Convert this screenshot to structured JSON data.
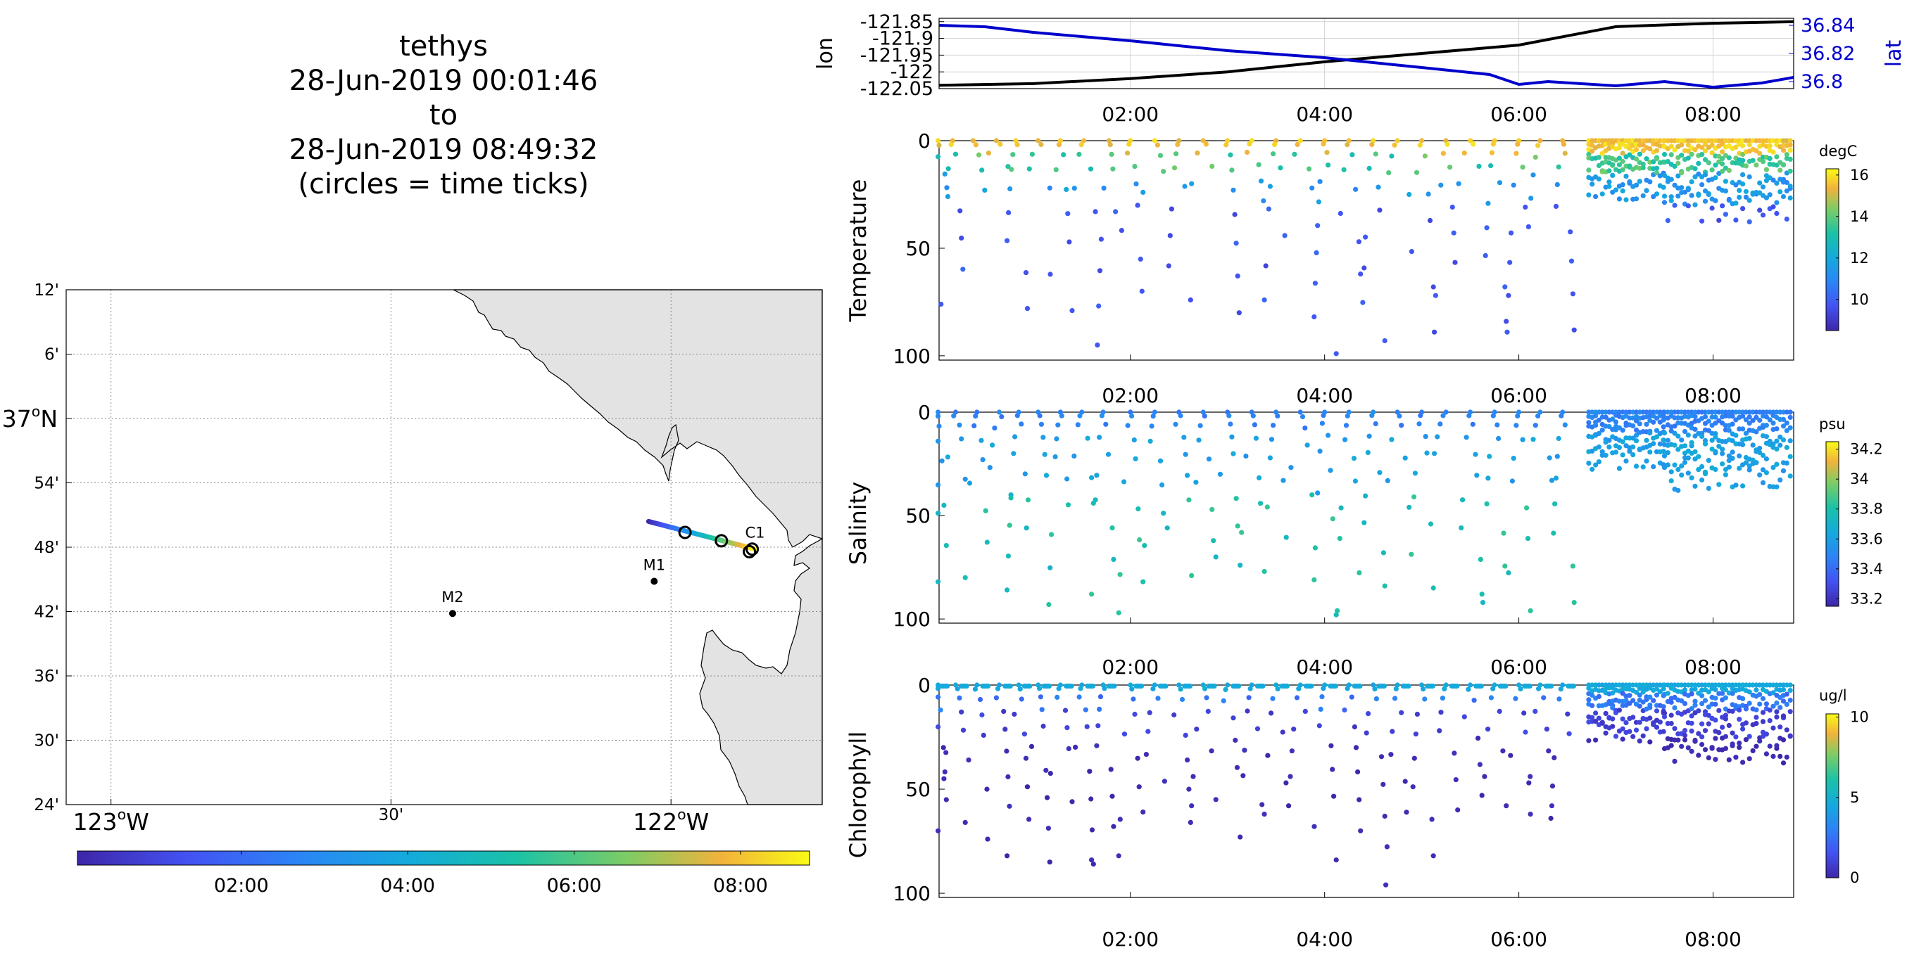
{
  "title": {
    "vehicle": "tethys",
    "start": "28-Jun-2019 00:01:46",
    "to": "to",
    "end": "28-Jun-2019 08:49:32",
    "note": "(circles = time ticks)"
  },
  "colors": {
    "lon_line": "#000000",
    "lat_line": "#0000cc",
    "land": "#e3e3e3",
    "track_start": "#3b3fd6",
    "track_end": "#f5d21f"
  },
  "chart_data": [
    {
      "type": "map",
      "name": "track-map",
      "lon_range": [
        -123.08,
        -121.73
      ],
      "lat_range": [
        36.4,
        37.2
      ],
      "lon_ticks": [
        {
          "value": -123.0,
          "label": "123",
          "sup": "o",
          "suffix": "W",
          "major": true
        },
        {
          "value": -122.5,
          "label": "30'",
          "major": false
        },
        {
          "value": -122.0,
          "label": "122",
          "sup": "o",
          "suffix": "W",
          "major": true
        }
      ],
      "lat_ticks": [
        {
          "value": 37.2,
          "label": "12'"
        },
        {
          "value": 37.1,
          "label": "6'"
        },
        {
          "value": 37.0,
          "label": "37",
          "sup": "o",
          "suffix": "N",
          "major": true
        },
        {
          "value": 36.9,
          "label": "54'"
        },
        {
          "value": 36.8,
          "label": "48'"
        },
        {
          "value": 36.7,
          "label": "42'"
        },
        {
          "value": 36.6,
          "label": "36'"
        },
        {
          "value": 36.5,
          "label": "30'"
        },
        {
          "value": 36.4,
          "label": "24'"
        }
      ],
      "moorings": [
        {
          "name": "M1",
          "lon": -122.03,
          "lat": 36.747
        },
        {
          "name": "M2",
          "lon": -122.39,
          "lat": 36.697
        },
        {
          "name": "C1",
          "lon": -121.85,
          "lat": 36.797
        }
      ],
      "track": {
        "start": {
          "lon": -122.04,
          "lat": 36.84
        },
        "end": {
          "lon": -121.85,
          "lat": 36.797
        },
        "time_ticks": [
          {
            "lon": -121.975,
            "lat": 36.823
          },
          {
            "lon": -121.91,
            "lat": 36.81
          },
          {
            "lon": -121.855,
            "lat": 36.797
          },
          {
            "lon": -121.86,
            "lat": 36.793
          }
        ]
      },
      "colorbar": {
        "range_hours": [
          0.03,
          8.83
        ],
        "ticks": [
          {
            "value": 2,
            "label": "02:00"
          },
          {
            "value": 4,
            "label": "04:00"
          },
          {
            "value": 6,
            "label": "06:00"
          },
          {
            "value": 8,
            "label": "08:00"
          }
        ]
      }
    },
    {
      "type": "line",
      "name": "navigation",
      "x_range_hours": [
        0.03,
        8.83
      ],
      "left_axis": {
        "label": "lon",
        "ylim": [
          -122.05,
          -121.84
        ],
        "ticks": [
          -121.85,
          -121.9,
          -121.95,
          -122,
          -122.05
        ],
        "tick_labels": [
          "-121.85",
          "-121.9",
          "-121.95",
          "-122",
          "-122.05"
        ]
      },
      "right_axis": {
        "label": "lat",
        "ylim": [
          36.795,
          36.845
        ],
        "ticks": [
          36.84,
          36.82,
          36.8
        ],
        "tick_labels": [
          "36.84",
          "36.82",
          "36.8"
        ]
      },
      "series": [
        {
          "axis": "left",
          "x": [
            0.03,
            1,
            2,
            3,
            4,
            5,
            6,
            7,
            8,
            8.83
          ],
          "y": [
            -122.04,
            -122.035,
            -122.02,
            -122.0,
            -121.97,
            -121.945,
            -121.92,
            -121.865,
            -121.855,
            -121.85
          ]
        },
        {
          "axis": "right",
          "x": [
            0.03,
            0.5,
            1,
            1.5,
            2,
            3,
            4,
            5,
            5.7,
            6,
            6.3,
            7,
            7.5,
            8,
            8.5,
            8.83
          ],
          "y": [
            36.84,
            36.839,
            36.835,
            36.832,
            36.829,
            36.822,
            36.817,
            36.81,
            36.805,
            36.798,
            36.8,
            36.797,
            36.8,
            36.796,
            36.799,
            36.803
          ]
        }
      ],
      "x_ticks": [
        {
          "value": 2,
          "label": "02:00"
        },
        {
          "value": 4,
          "label": "04:00"
        },
        {
          "value": 6,
          "label": "06:00"
        },
        {
          "value": 8,
          "label": "08:00"
        }
      ]
    },
    {
      "type": "scatter",
      "name": "temperature",
      "ylabel": "Temperature",
      "depth_ticks": [
        0,
        50,
        100
      ],
      "units": "degC",
      "cbar_range": [
        8.5,
        16.3
      ],
      "cbar_ticks": [
        10,
        12,
        14,
        16
      ],
      "x_ticks": [
        {
          "value": 2,
          "label": "02:00"
        },
        {
          "value": 4,
          "label": "04:00"
        },
        {
          "value": 6,
          "label": "06:00"
        },
        {
          "value": 8,
          "label": "08:00"
        }
      ],
      "profiles": [
        {
          "t": 0.0,
          "maxd": 26
        },
        {
          "t": 0.17,
          "maxd": 76
        },
        {
          "t": 0.38,
          "maxd": 23
        },
        {
          "t": 0.62,
          "maxd": 12
        },
        {
          "t": 0.82,
          "maxd": 78
        },
        {
          "t": 1.05,
          "maxd": 22
        },
        {
          "t": 1.28,
          "maxd": 79
        },
        {
          "t": 1.52,
          "maxd": 33
        },
        {
          "t": 1.78,
          "maxd": 95
        },
        {
          "t": 2.0,
          "maxd": 70
        },
        {
          "t": 2.25,
          "maxd": 24
        },
        {
          "t": 2.5,
          "maxd": 74
        },
        {
          "t": 2.75,
          "maxd": 20
        },
        {
          "t": 3.0,
          "maxd": 80
        },
        {
          "t": 3.25,
          "maxd": 28
        },
        {
          "t": 3.5,
          "maxd": 74
        },
        {
          "t": 3.75,
          "maxd": 22
        },
        {
          "t": 4.0,
          "maxd": 99
        },
        {
          "t": 4.25,
          "maxd": 62
        },
        {
          "t": 4.5,
          "maxd": 93
        },
        {
          "t": 4.75,
          "maxd": 25
        },
        {
          "t": 5.0,
          "maxd": 68
        },
        {
          "t": 5.25,
          "maxd": 89
        },
        {
          "t": 5.5,
          "maxd": 20
        },
        {
          "t": 5.75,
          "maxd": 84
        },
        {
          "t": 6.0,
          "maxd": 89
        },
        {
          "t": 6.22,
          "maxd": 40
        },
        {
          "t": 6.45,
          "maxd": 88
        }
      ],
      "dense_segments": [
        [
          6.72,
          7.5,
          28
        ],
        [
          7.5,
          8.8,
          38
        ]
      ]
    },
    {
      "type": "scatter",
      "name": "salinity",
      "ylabel": "Salinity",
      "depth_ticks": [
        0,
        50,
        100
      ],
      "units": "psu",
      "cbar_range": [
        33.15,
        34.25
      ],
      "cbar_ticks": [
        33.2,
        33.4,
        33.6,
        33.8,
        34,
        34.2
      ],
      "x_ticks": [
        {
          "value": 2,
          "label": "02:00"
        },
        {
          "value": 4,
          "label": "04:00"
        },
        {
          "value": 6,
          "label": "06:00"
        },
        {
          "value": 8,
          "label": "08:00"
        }
      ],
      "profiles": [
        {
          "t": 0.0,
          "maxd": 82
        },
        {
          "t": 0.2,
          "maxd": 45
        },
        {
          "t": 0.42,
          "maxd": 80
        },
        {
          "t": 0.65,
          "maxd": 40
        },
        {
          "t": 0.85,
          "maxd": 86
        },
        {
          "t": 1.05,
          "maxd": 56
        },
        {
          "t": 1.28,
          "maxd": 93
        },
        {
          "t": 1.5,
          "maxd": 44
        },
        {
          "t": 1.72,
          "maxd": 88
        },
        {
          "t": 2.0,
          "maxd": 97
        },
        {
          "t": 2.25,
          "maxd": 82
        },
        {
          "t": 2.5,
          "maxd": 56
        },
        {
          "t": 2.75,
          "maxd": 79
        },
        {
          "t": 3.0,
          "maxd": 70
        },
        {
          "t": 3.25,
          "maxd": 74
        },
        {
          "t": 3.5,
          "maxd": 77
        },
        {
          "t": 3.75,
          "maxd": 40
        },
        {
          "t": 4.0,
          "maxd": 98
        },
        {
          "t": 4.25,
          "maxd": 96
        },
        {
          "t": 4.5,
          "maxd": 84
        },
        {
          "t": 4.75,
          "maxd": 46
        },
        {
          "t": 5.0,
          "maxd": 85
        },
        {
          "t": 5.25,
          "maxd": 20
        },
        {
          "t": 5.5,
          "maxd": 88
        },
        {
          "t": 5.75,
          "maxd": 92
        },
        {
          "t": 6.0,
          "maxd": 96
        },
        {
          "t": 6.22,
          "maxd": 33
        },
        {
          "t": 6.45,
          "maxd": 92
        }
      ],
      "dense_segments": [
        [
          6.72,
          7.5,
          28
        ],
        [
          7.5,
          8.8,
          38
        ]
      ]
    },
    {
      "type": "scatter",
      "name": "chlorophyll",
      "ylabel": "Chlorophyll",
      "depth_ticks": [
        0,
        50,
        100
      ],
      "units": "ug/l",
      "cbar_range": [
        0,
        10.2
      ],
      "cbar_ticks": [
        0,
        5,
        10
      ],
      "x_ticks": [
        {
          "value": 2,
          "label": "02:00"
        },
        {
          "value": 4,
          "label": "04:00"
        },
        {
          "value": 6,
          "label": "06:00"
        },
        {
          "value": 8,
          "label": "08:00"
        }
      ],
      "profiles": [
        {
          "t": 0.0,
          "maxd": 70
        },
        {
          "t": 0.2,
          "maxd": 45
        },
        {
          "t": 0.42,
          "maxd": 66
        },
        {
          "t": 0.65,
          "maxd": 74
        },
        {
          "t": 0.85,
          "maxd": 82
        },
        {
          "t": 1.05,
          "maxd": 85
        },
        {
          "t": 1.28,
          "maxd": 56
        },
        {
          "t": 1.5,
          "maxd": 86
        },
        {
          "t": 1.72,
          "maxd": 84
        },
        {
          "t": 2.0,
          "maxd": 82
        },
        {
          "t": 2.25,
          "maxd": 61
        },
        {
          "t": 2.5,
          "maxd": 66
        },
        {
          "t": 2.75,
          "maxd": 58
        },
        {
          "t": 3.0,
          "maxd": 55
        },
        {
          "t": 3.25,
          "maxd": 73
        },
        {
          "t": 3.5,
          "maxd": 62
        },
        {
          "t": 3.75,
          "maxd": 58
        },
        {
          "t": 4.0,
          "maxd": 84
        },
        {
          "t": 4.25,
          "maxd": 70
        },
        {
          "t": 4.5,
          "maxd": 63
        },
        {
          "t": 4.75,
          "maxd": 96
        },
        {
          "t": 5.0,
          "maxd": 82
        },
        {
          "t": 5.25,
          "maxd": 60
        },
        {
          "t": 5.5,
          "maxd": 53
        },
        {
          "t": 5.75,
          "maxd": 58
        },
        {
          "t": 6.0,
          "maxd": 62
        },
        {
          "t": 6.22,
          "maxd": 58
        },
        {
          "t": 6.45,
          "maxd": 64
        }
      ],
      "dense_segments": [
        [
          6.72,
          7.5,
          28
        ],
        [
          7.5,
          8.8,
          38
        ]
      ]
    }
  ]
}
